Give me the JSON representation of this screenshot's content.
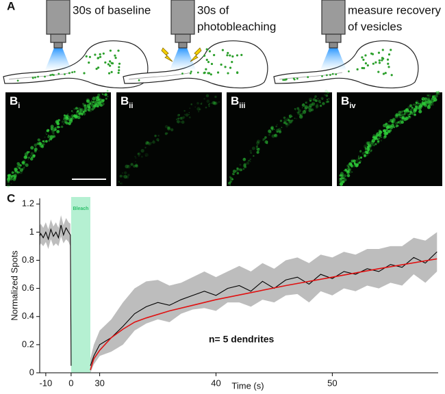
{
  "panel_a": {
    "label": "A",
    "steps": [
      [
        "30s of baseline"
      ],
      [
        "30s of",
        "photobleaching"
      ],
      [
        "measure recovery",
        "of vesicles"
      ]
    ]
  },
  "panel_b": {
    "label": "B",
    "subscripts": [
      "i",
      "ii",
      "iii",
      "iv"
    ]
  },
  "chart_data": {
    "type": "line",
    "label": "C",
    "ylabel": "Normalized Spots",
    "xlabel": "Time (s)",
    "annotation": "n= 5 dendrites",
    "bleach": {
      "label": "Bleach",
      "x": 0,
      "color": "#b5f0d2"
    },
    "ylim": [
      0,
      1.24
    ],
    "yticks": [
      0.0,
      0.2,
      0.4,
      0.6,
      0.8,
      1.0,
      1.2
    ],
    "x_segments": [
      {
        "xlim": [
          -12.4,
          7.6
        ],
        "xticks": [
          -10,
          0
        ]
      },
      {
        "xlim": [
          29.2,
          59.1
        ],
        "xticks": [
          30,
          40,
          50
        ]
      }
    ],
    "bands": [
      {
        "color": "#bdbdbd",
        "x": [
          -12.4,
          -12,
          -11,
          -10,
          -9,
          -8,
          -7,
          -6,
          -5,
          -4,
          -3,
          -2,
          -1,
          -0.3,
          0
        ],
        "lower": [
          0.9,
          0.92,
          0.9,
          0.93,
          0.88,
          0.95,
          0.9,
          0.92,
          0.9,
          0.97,
          0.92,
          0.95,
          0.93,
          0.9,
          0.04
        ],
        "upper": [
          1.04,
          1.06,
          1.03,
          1.07,
          1.02,
          1.09,
          1.04,
          1.07,
          1.03,
          1.12,
          1.05,
          1.1,
          1.07,
          1.06,
          0.07
        ]
      },
      {
        "color": "#bdbdbd",
        "x": [
          29.2,
          29.5,
          30,
          31,
          32,
          33,
          34,
          35,
          36,
          37,
          38,
          39,
          40,
          41,
          42,
          43,
          44,
          45,
          46,
          47,
          48,
          49,
          50,
          51,
          52,
          53,
          54,
          55,
          56,
          57,
          58,
          59
        ],
        "lower": [
          0.0,
          0.06,
          0.12,
          0.15,
          0.2,
          0.3,
          0.35,
          0.38,
          0.36,
          0.42,
          0.45,
          0.46,
          0.44,
          0.5,
          0.5,
          0.47,
          0.52,
          0.5,
          0.55,
          0.56,
          0.5,
          0.58,
          0.55,
          0.6,
          0.58,
          0.62,
          0.6,
          0.64,
          0.62,
          0.7,
          0.64,
          0.72
        ],
        "upper": [
          0.1,
          0.2,
          0.3,
          0.38,
          0.5,
          0.6,
          0.65,
          0.66,
          0.62,
          0.64,
          0.68,
          0.72,
          0.68,
          0.72,
          0.76,
          0.72,
          0.78,
          0.74,
          0.8,
          0.82,
          0.78,
          0.84,
          0.82,
          0.86,
          0.84,
          0.88,
          0.88,
          0.9,
          0.9,
          0.96,
          0.94,
          1.0
        ]
      }
    ],
    "series": [
      {
        "color": "#000000",
        "x": [
          -12.4,
          -12,
          -11,
          -10,
          -9,
          -8,
          -7,
          -6,
          -5,
          -4,
          -3,
          -2,
          -1,
          -0.3,
          0
        ],
        "values": [
          0.97,
          0.99,
          0.96,
          1.0,
          0.95,
          1.02,
          0.97,
          1.0,
          0.96,
          1.05,
          0.98,
          1.03,
          1.0,
          0.98,
          0.05
        ]
      },
      {
        "color": "#000000",
        "x": [
          29.2,
          29.5,
          30,
          31,
          32,
          33,
          34,
          35,
          36,
          37,
          38,
          39,
          40,
          41,
          42,
          43,
          44,
          45,
          46,
          47,
          48,
          49,
          50,
          51,
          52,
          53,
          54,
          55,
          56,
          57,
          58,
          59
        ],
        "values": [
          0.05,
          0.12,
          0.2,
          0.25,
          0.33,
          0.42,
          0.47,
          0.5,
          0.48,
          0.52,
          0.55,
          0.58,
          0.55,
          0.6,
          0.62,
          0.58,
          0.65,
          0.6,
          0.66,
          0.68,
          0.63,
          0.7,
          0.67,
          0.72,
          0.7,
          0.74,
          0.72,
          0.77,
          0.75,
          0.82,
          0.78,
          0.86
        ]
      },
      {
        "color": "#e01010",
        "x": [
          29.2,
          29.5,
          30,
          31,
          32,
          33,
          34,
          36,
          38,
          40,
          43,
          46,
          50,
          54,
          59
        ],
        "values": [
          0.02,
          0.1,
          0.16,
          0.25,
          0.31,
          0.36,
          0.39,
          0.44,
          0.48,
          0.52,
          0.57,
          0.62,
          0.68,
          0.74,
          0.81
        ]
      }
    ]
  }
}
